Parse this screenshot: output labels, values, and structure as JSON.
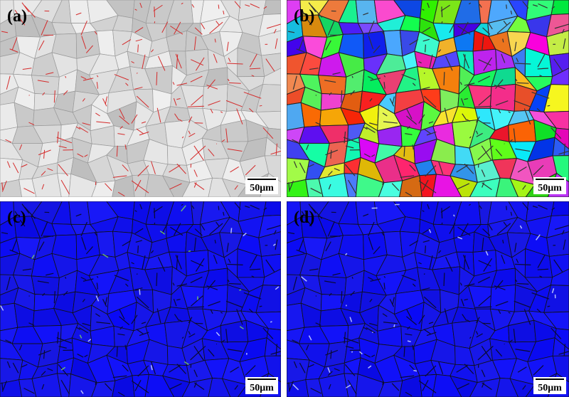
{
  "panels": [
    {
      "label": "(a)",
      "scale_bar": "50μm"
    },
    {
      "label": "(b)",
      "scale_bar": "50μm"
    },
    {
      "label": "(c)",
      "scale_bar": "50μm"
    },
    {
      "label": "(d)",
      "scale_bar": "50μm"
    }
  ]
}
